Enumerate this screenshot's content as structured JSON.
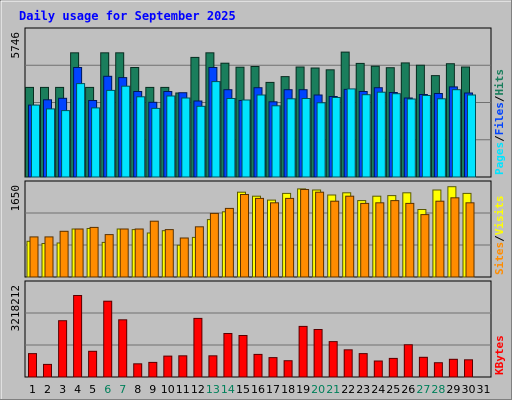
{
  "chart_data": {
    "type": "bar",
    "title": "Daily usage for September 2025",
    "categories": [
      "1",
      "2",
      "3",
      "4",
      "5",
      "6",
      "7",
      "8",
      "9",
      "10",
      "11",
      "12",
      "13",
      "14",
      "15",
      "16",
      "17",
      "18",
      "19",
      "20",
      "21",
      "22",
      "23",
      "24",
      "25",
      "26",
      "27",
      "28",
      "29",
      "30",
      "31"
    ],
    "weekend_days": [
      "6",
      "7",
      "13",
      "14",
      "20",
      "21",
      "27",
      "28"
    ],
    "panels": [
      {
        "name": "requests",
        "tick_label": "5746",
        "ylim": [
          0,
          5746
        ],
        "right_legend": [
          "Pages",
          "Files",
          "Hits"
        ],
        "series": [
          {
            "name": "Hits",
            "color": "#1a7e5c",
            "values": [
              3550,
              3550,
              3550,
              4920,
              3550,
              4920,
              4920,
              4340,
              3550,
              3550,
              3330,
              4740,
              4920,
              4510,
              4350,
              4380,
              3750,
              3980,
              4360,
              4320,
              4250,
              4950,
              4500,
              4390,
              4330,
              4520,
              4430,
              4020,
              4490,
              4360,
              null
            ]
          },
          {
            "name": "Files",
            "color": "#0044ff",
            "values": [
              2850,
              3060,
              3120,
              4340,
              3030,
              3990,
              3940,
              3390,
              2960,
              3390,
              3340,
              3010,
              4340,
              3460,
              3030,
              3540,
              2980,
              3460,
              3460,
              3250,
              3190,
              3470,
              3390,
              3540,
              3350,
              3130,
              3270,
              3310,
              3570,
              3330,
              null
            ]
          },
          {
            "name": "Pages",
            "color": "#00e4ff",
            "values": [
              2850,
              2700,
              2630,
              3700,
              2740,
              3430,
              3600,
              3180,
              2720,
              3210,
              3130,
              2800,
              3780,
              3110,
              3050,
              3250,
              2820,
              3100,
              3110,
              2940,
              3150,
              3490,
              3260,
              3360,
              3300,
              3090,
              3230,
              3100,
              3460,
              3250,
              null
            ]
          }
        ]
      },
      {
        "name": "visits",
        "tick_label": "1650",
        "ylim": [
          0,
          1650
        ],
        "right_legend": [
          "Sites",
          "Visits"
        ],
        "series": [
          {
            "name": "Visits",
            "color": "#ffff00",
            "values": [
              640,
              600,
              610,
              860,
              870,
              620,
              860,
              850,
              790,
              830,
              570,
              710,
              1030,
              1170,
              1520,
              1450,
              1380,
              1500,
              1580,
              1560,
              1470,
              1510,
              1370,
              1450,
              1460,
              1510,
              1210,
              1560,
              1620,
              1500,
              null
            ]
          },
          {
            "name": "Sites",
            "color": "#ff8c00",
            "values": [
              720,
              720,
              820,
              860,
              890,
              760,
              860,
              860,
              1000,
              850,
              700,
              900,
              1140,
              1230,
              1480,
              1410,
              1330,
              1410,
              1570,
              1520,
              1360,
              1450,
              1320,
              1330,
              1370,
              1320,
              1120,
              1360,
              1420,
              1330,
              null
            ]
          }
        ]
      },
      {
        "name": "kbytes",
        "tick_label": "3218212",
        "ylim": [
          0,
          3218212
        ],
        "right_legend": [
          "KBytes"
        ],
        "series": [
          {
            "name": "KBytes",
            "color": "#ff0000",
            "values": [
              820,
              440,
              1970,
              2850,
              900,
              2650,
              2000,
              460,
              510,
              730,
              740,
              2050,
              740,
              1520,
              1450,
              790,
              680,
              570,
              1770,
              1660,
              1240,
              950,
              820,
              560,
              650,
              1130,
              690,
              500,
              620,
              600,
              null
            ],
            "scale_note": ""
          }
        ]
      }
    ]
  },
  "colors": {
    "background": "#c0c0c0",
    "plot_bg": "#c0c0c0",
    "grid": "#707070",
    "title": "#0000ff",
    "weekday_label": "#000000",
    "weekend_label": "#00805a"
  }
}
